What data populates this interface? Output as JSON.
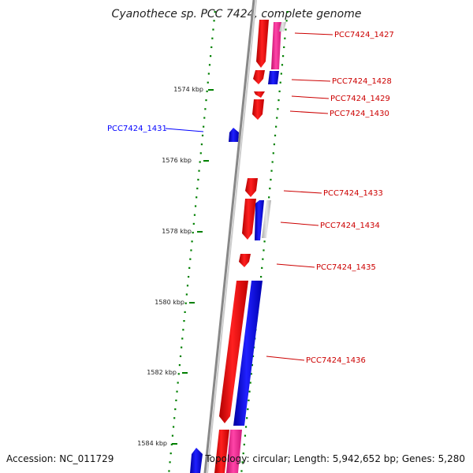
{
  "title": "Cyanothece sp. PCC 7424, complete genome",
  "footer": {
    "accession": "Accession: NC_011729",
    "summary": "Topology: circular; Length: 5,942,652 bp; Genes: 5,280"
  },
  "colors": {
    "forward_gene": "#ff0000",
    "reverse_gene": "#0000ff",
    "rna_gene": "#ff3399",
    "ticks": "#008000",
    "backbone": "#888888"
  },
  "ruler": [
    {
      "label": "1574 kbp",
      "kbp": 1574
    },
    {
      "label": "1576 kbp",
      "kbp": 1576
    },
    {
      "label": "1578 kbp",
      "kbp": 1578
    },
    {
      "label": "1580 kbp",
      "kbp": 1580
    },
    {
      "label": "1582 kbp",
      "kbp": 1582
    },
    {
      "label": "1584 kbp",
      "kbp": 1584
    }
  ],
  "gene_labels": [
    {
      "name": "PCC7424_1427",
      "strand": "forward"
    },
    {
      "name": "PCC7424_1428",
      "strand": "forward"
    },
    {
      "name": "PCC7424_1429",
      "strand": "forward"
    },
    {
      "name": "PCC7424_1430",
      "strand": "forward"
    },
    {
      "name": "PCC7424_1431",
      "strand": "reverse"
    },
    {
      "name": "PCC7424_1433",
      "strand": "forward"
    },
    {
      "name": "PCC7424_1434",
      "strand": "forward"
    },
    {
      "name": "PCC7424_1435",
      "strand": "forward"
    },
    {
      "name": "PCC7424_1436",
      "strand": "forward"
    }
  ]
}
